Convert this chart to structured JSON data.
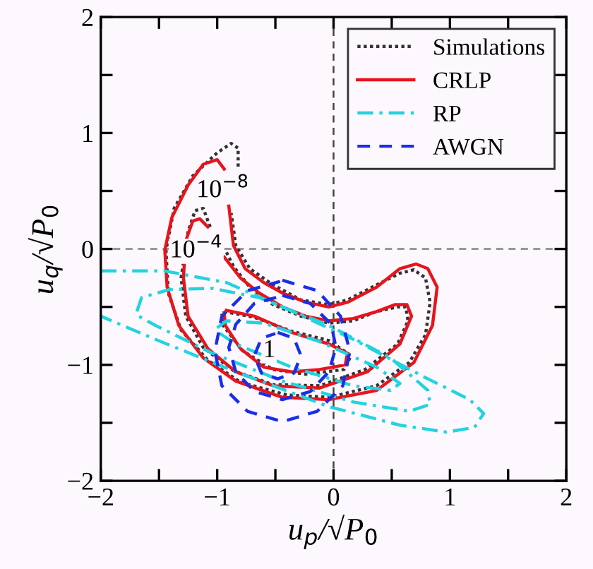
{
  "chart_data": {
    "type": "line",
    "xlabel": "u$_{p}$/√P$_{0}$",
    "ylabel": "u$_{q}$/√P$_{0}$",
    "xlim": [
      -2,
      2
    ],
    "ylim": [
      -2,
      2
    ],
    "xticks": [
      -2,
      {
        "value": -1.5,
        "label": null
      },
      -1,
      {
        "value": -0.5,
        "label": null
      },
      0,
      {
        "value": 0.5,
        "label": null
      },
      1,
      {
        "value": 1.5,
        "label": null
      },
      2
    ],
    "yticks": [
      -2,
      {
        "value": -1.5,
        "label": null
      },
      -1,
      {
        "value": -0.5,
        "label": null
      },
      0,
      {
        "value": 0.5,
        "label": null
      },
      1,
      {
        "value": 1.5,
        "label": null
      },
      2
    ],
    "grid": false,
    "legend": "top right",
    "marker": "none",
    "ref_lines": [
      {
        "axis": "x",
        "value": 0,
        "color": "#444444",
        "line_style": "dashed"
      },
      {
        "axis": "y",
        "value": 0,
        "color": "#777777",
        "line_style": "dashed"
      }
    ],
    "annotations": [
      "10$^{−8}$",
      "10$^{−4}$",
      "1"
    ],
    "series": [
      {
        "name": "Simulations",
        "color": "#333333",
        "line_style": "dotted",
        "x": [
          -0.82,
          -0.82,
          -0.88,
          -1.0,
          -1.21,
          -1.37,
          -1.44,
          -1.42,
          -1.31,
          -1.08,
          -0.8,
          -0.4,
          -0.04,
          0.37,
          0.65,
          0.79,
          0.83,
          0.79,
          0.69,
          0.57,
          0.37,
          0.12,
          -0.04,
          -0.28,
          -0.52,
          -0.72,
          -0.84,
          -0.88
        ],
        "values": [
          0.71,
          0.87,
          0.91,
          0.83,
          0.63,
          0.35,
          -0.01,
          -0.38,
          -0.7,
          -0.96,
          -1.15,
          -1.26,
          -1.28,
          -1.18,
          -0.98,
          -0.74,
          -0.46,
          -0.25,
          -0.18,
          -0.21,
          -0.31,
          -0.44,
          -0.48,
          -0.44,
          -0.31,
          -0.17,
          0.03,
          0.31
        ]
      },
      {
        "color": "#333333",
        "line_style": "dotted",
        "x": [
          -1.06,
          -1.12,
          -1.19,
          -1.25,
          -1.31,
          -1.27,
          -1.12,
          -0.86,
          -0.52,
          -0.12,
          0.27,
          0.55,
          0.64,
          0.62,
          0.55,
          0.37,
          0.17,
          -0.04,
          -0.28,
          -0.52,
          -0.72,
          -0.86,
          -0.92
        ],
        "values": [
          0.19,
          0.35,
          0.33,
          0.15,
          -0.25,
          -0.58,
          -0.85,
          -1.05,
          -1.17,
          -1.18,
          -1.04,
          -0.82,
          -0.62,
          -0.5,
          -0.5,
          -0.54,
          -0.62,
          -0.64,
          -0.58,
          -0.48,
          -0.33,
          -0.15,
          -0.03
        ]
      },
      {
        "color": "#333333",
        "line_style": "dotted",
        "x": [
          -0.94,
          -0.68,
          -0.36,
          -0.04,
          0.15,
          0.09,
          -0.24,
          -0.52,
          -0.78,
          -0.95,
          -0.96
        ],
        "values": [
          -0.54,
          -0.59,
          -0.71,
          -0.79,
          -0.92,
          -1.04,
          -1.08,
          -1.04,
          -0.88,
          -0.66,
          -0.56
        ]
      },
      {
        "name": "CRLP",
        "color": "#e8141c",
        "line_style": "solid",
        "x": [
          -0.94,
          -1.0,
          -1.12,
          -1.25,
          -1.39,
          -1.45,
          -1.43,
          -1.33,
          -1.12,
          -0.84,
          -0.44,
          -0.04,
          0.37,
          0.69,
          0.85,
          0.89,
          0.81,
          0.71,
          0.57,
          0.37,
          0.12,
          -0.04,
          -0.24,
          -0.44,
          -0.6,
          -0.76,
          -0.86,
          -0.9
        ],
        "values": [
          0.69,
          0.77,
          0.73,
          0.55,
          0.27,
          -0.01,
          -0.33,
          -0.66,
          -0.94,
          -1.14,
          -1.28,
          -1.3,
          -1.22,
          -0.98,
          -0.66,
          -0.33,
          -0.17,
          -0.13,
          -0.17,
          -0.33,
          -0.46,
          -0.5,
          -0.46,
          -0.38,
          -0.29,
          -0.17,
          0.03,
          0.37
        ]
      },
      {
        "color": "#e8141c",
        "line_style": "solid",
        "x": [
          -1.08,
          -1.15,
          -1.21,
          -1.27,
          -1.29,
          -1.25,
          -1.08,
          -0.84,
          -0.52,
          -0.12,
          0.29,
          0.57,
          0.67,
          0.63,
          0.53,
          0.37,
          0.17,
          -0.04,
          -0.24,
          -0.44,
          -0.64,
          -0.8,
          -0.94
        ],
        "values": [
          0.19,
          0.26,
          0.24,
          0.07,
          -0.25,
          -0.58,
          -0.86,
          -1.06,
          -1.18,
          -1.2,
          -1.06,
          -0.82,
          -0.58,
          -0.48,
          -0.48,
          -0.54,
          -0.6,
          -0.62,
          -0.58,
          -0.5,
          -0.38,
          -0.25,
          -0.07
        ]
      },
      {
        "color": "#e8141c",
        "line_style": "solid",
        "x": [
          -0.92,
          -0.68,
          -0.36,
          -0.04,
          0.12,
          0.1,
          -0.12,
          -0.36,
          -0.6,
          -0.8,
          -0.93,
          -0.94
        ],
        "values": [
          -0.53,
          -0.58,
          -0.72,
          -0.82,
          -0.9,
          -1.0,
          -1.04,
          -1.06,
          -1.02,
          -0.86,
          -0.66,
          -0.55
        ]
      },
      {
        "name": "RP",
        "color": "#22d3e0",
        "line_style": "dashdot",
        "x": [
          -2.0,
          -1.45,
          -0.92,
          -0.44,
          0.17,
          0.77,
          1.17,
          1.29,
          1.21,
          0.97,
          0.57,
          -0.04,
          -0.84,
          -1.53,
          -2.0
        ],
        "values": [
          -0.19,
          -0.19,
          -0.29,
          -0.5,
          -0.78,
          -1.1,
          -1.3,
          -1.42,
          -1.54,
          -1.58,
          -1.52,
          -1.36,
          -1.06,
          -0.78,
          -0.58
        ]
      },
      {
        "color": "#22d3e0",
        "line_style": "dashdot",
        "x": [
          -1.69,
          -1.65,
          -1.41,
          -1.04,
          -0.64,
          -0.04,
          0.49,
          0.81,
          0.83,
          0.65,
          0.17,
          -0.44,
          -1.04,
          -1.53,
          -1.71
        ],
        "values": [
          -0.54,
          -0.42,
          -0.35,
          -0.34,
          -0.42,
          -0.66,
          -0.94,
          -1.22,
          -1.34,
          -1.4,
          -1.32,
          -1.14,
          -0.9,
          -0.66,
          -0.56
        ]
      },
      {
        "color": "#22d3e0",
        "line_style": "dashdot",
        "x": [
          -1.0,
          -0.92,
          -0.6,
          -0.12,
          0.37,
          0.57,
          0.49,
          0.17,
          -0.36,
          -0.84,
          -1.02
        ],
        "values": [
          -0.68,
          -0.62,
          -0.64,
          -0.8,
          -1.02,
          -1.16,
          -1.22,
          -1.18,
          -1.02,
          -0.82,
          -0.7
        ]
      },
      {
        "name": "AWGN",
        "color": "#1a2ee8",
        "line_style": "dashed",
        "x": [
          -0.44,
          -0.14,
          0.06,
          0.14,
          0.08,
          -0.14,
          -0.44,
          -0.74,
          -0.96,
          -1.02,
          -0.96,
          -0.74,
          -0.46
        ],
        "values": [
          -0.27,
          -0.36,
          -0.58,
          -0.88,
          -1.18,
          -1.4,
          -1.49,
          -1.4,
          -1.18,
          -0.88,
          -0.58,
          -0.36,
          -0.28
        ]
      },
      {
        "color": "#1a2ee8",
        "line_style": "dashed",
        "x": [
          -0.44,
          -0.2,
          -0.02,
          0.02,
          -0.04,
          -0.2,
          -0.44,
          -0.68,
          -0.84,
          -0.9,
          -0.84,
          -0.68,
          -0.46
        ],
        "values": [
          -0.4,
          -0.47,
          -0.65,
          -0.85,
          -1.06,
          -1.23,
          -1.3,
          -1.23,
          -1.06,
          -0.85,
          -0.65,
          -0.47,
          -0.41
        ]
      },
      {
        "color": "#1a2ee8",
        "line_style": "dashed",
        "x": [
          -0.48,
          -0.34,
          -0.28,
          -0.34,
          -0.48,
          -0.62,
          -0.68,
          -0.62,
          -0.5
        ],
        "values": [
          -0.72,
          -0.77,
          -0.92,
          -1.07,
          -1.12,
          -1.07,
          -0.92,
          -0.77,
          -0.73
        ]
      }
    ]
  }
}
